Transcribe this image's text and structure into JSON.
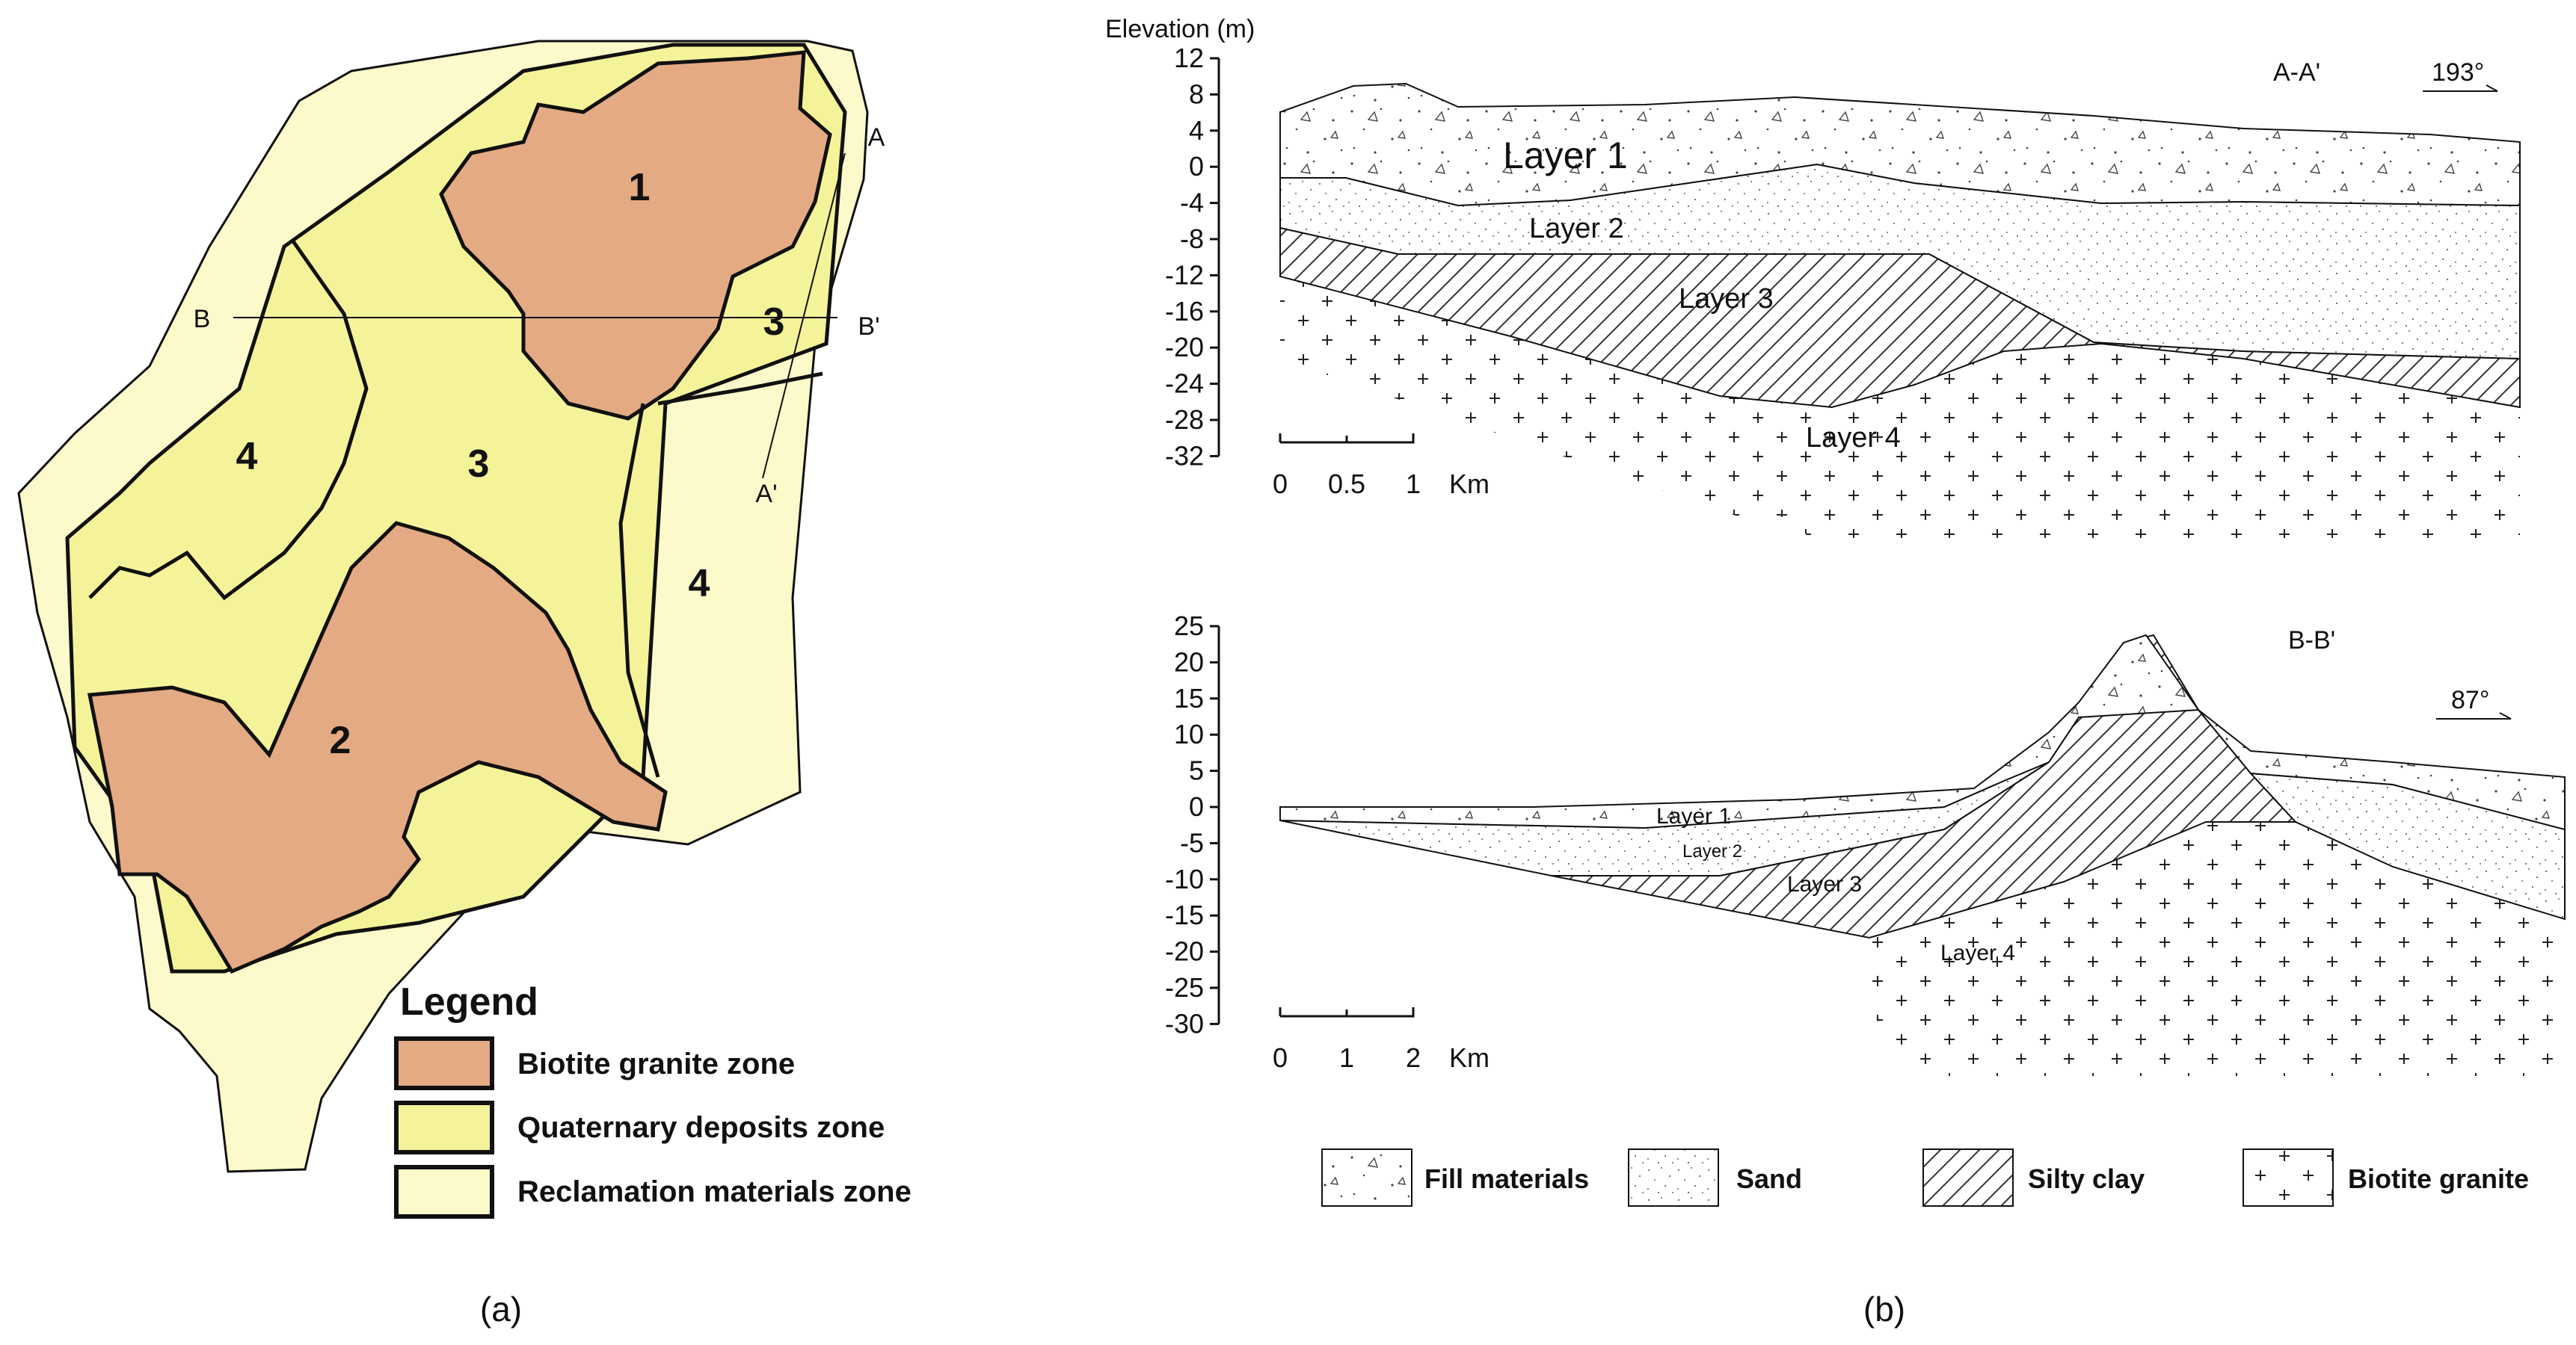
{
  "colors": {
    "granite_zone": "#e3aa84",
    "quaternary_zone": "#f5f39a",
    "reclamation_zone": "#fcf9ca",
    "outline": "#111111"
  },
  "map": {
    "zone_labels": [
      "1",
      "2",
      "3",
      "3",
      "4",
      "4"
    ],
    "section_markers": {
      "a": "A",
      "a_prime": "A'",
      "b": "B",
      "b_prime": "B'"
    },
    "legend": {
      "title": "Legend",
      "items": [
        {
          "label": "Biotite granite zone",
          "color": "#e3aa84"
        },
        {
          "label": "Quaternary deposits zone",
          "color": "#f5f39a"
        },
        {
          "label": "Reclamation materials zone",
          "color": "#fcf9ca"
        }
      ]
    },
    "caption": "(a)"
  },
  "sections": {
    "elevation_axis_label": "Elevation (m)",
    "aa": {
      "title": "A-A'",
      "direction": "193°",
      "y_ticks": [
        "12",
        "8",
        "4",
        "0",
        "-4",
        "-8",
        "-12",
        "-16",
        "-20",
        "-24",
        "-28",
        "-32"
      ],
      "layers": [
        "Layer 1",
        "Layer 2",
        "Layer 3",
        "Layer 4"
      ],
      "scale_ticks": [
        "0",
        "0.5",
        "1"
      ],
      "scale_unit": "Km"
    },
    "bb": {
      "title": "B-B'",
      "direction": "87°",
      "y_ticks": [
        "25",
        "20",
        "15",
        "10",
        "5",
        "0",
        "-5",
        "-10",
        "-15",
        "-20",
        "-25",
        "-30"
      ],
      "layers": [
        "Layer 1",
        "Layer 2",
        "Layer 3",
        "Layer 4"
      ],
      "scale_ticks": [
        "0",
        "1",
        "2"
      ],
      "scale_unit": "Km"
    },
    "material_legend": [
      "Fill materials",
      "Sand",
      "Silty clay",
      "Biotite granite"
    ],
    "caption": "(b)"
  }
}
